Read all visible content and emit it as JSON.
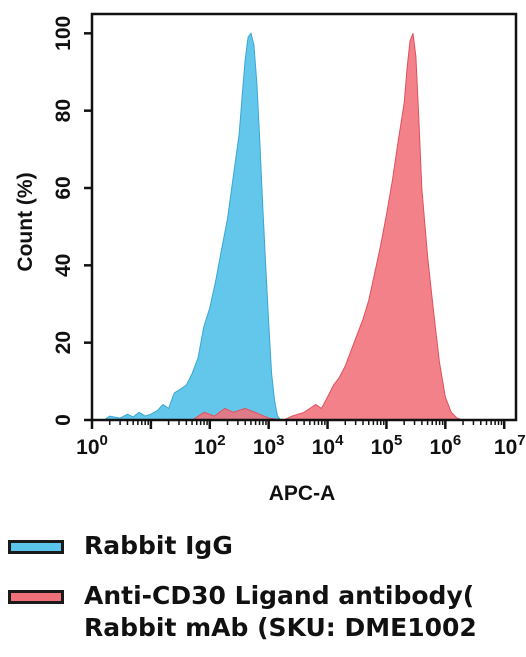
{
  "chart_data": {
    "type": "area",
    "title": "",
    "xlabel": "APC-A",
    "ylabel": "Count (%)",
    "xscale": "log",
    "xlim": [
      1,
      15848931
    ],
    "ylim": [
      0,
      105
    ],
    "x_tick_labels": [
      {
        "value": 1,
        "base": "10",
        "exp": "0"
      },
      {
        "value": 100,
        "base": "10",
        "exp": "2"
      },
      {
        "value": 1000,
        "base": "10",
        "exp": "3"
      },
      {
        "value": 10000,
        "base": "10",
        "exp": "4"
      },
      {
        "value": 100000,
        "base": "10",
        "exp": "5"
      },
      {
        "value": 1000000,
        "base": "10",
        "exp": "6"
      },
      {
        "value": 15848931,
        "base": "10",
        "exp": "7.2"
      }
    ],
    "y_ticks": [
      0,
      20,
      40,
      60,
      80,
      100
    ],
    "grid": false,
    "legend_position": "bottom",
    "series": [
      {
        "name": "Rabbit IgG",
        "color": "#5bc4ea",
        "points": [
          [
            1.6,
            0
          ],
          [
            2,
            1
          ],
          [
            3,
            0.5
          ],
          [
            4,
            1.5
          ],
          [
            5,
            0.8
          ],
          [
            6.3,
            2
          ],
          [
            8,
            1
          ],
          [
            10,
            1.5
          ],
          [
            13,
            2.5
          ],
          [
            16,
            4
          ],
          [
            20,
            3
          ],
          [
            25,
            7
          ],
          [
            32,
            8
          ],
          [
            40,
            9
          ],
          [
            50,
            12
          ],
          [
            63,
            16
          ],
          [
            79,
            24
          ],
          [
            100,
            29
          ],
          [
            126,
            36
          ],
          [
            158,
            44
          ],
          [
            200,
            52
          ],
          [
            251,
            63
          ],
          [
            316,
            74
          ],
          [
            355,
            84
          ],
          [
            398,
            93
          ],
          [
            447,
            99
          ],
          [
            501,
            100
          ],
          [
            562,
            97
          ],
          [
            631,
            87
          ],
          [
            708,
            72
          ],
          [
            794,
            55
          ],
          [
            891,
            40
          ],
          [
            1000,
            25
          ],
          [
            1122,
            12
          ],
          [
            1259,
            5
          ],
          [
            1413,
            1
          ],
          [
            1600,
            0
          ]
        ]
      },
      {
        "name": "Anti-CD30 Ligand antibody(\nRabbit mAb (SKU: DME1002",
        "color": "#f0707a",
        "points": [
          [
            50,
            0
          ],
          [
            80,
            2
          ],
          [
            120,
            1
          ],
          [
            180,
            3
          ],
          [
            250,
            2
          ],
          [
            400,
            3
          ],
          [
            700,
            1.5
          ],
          [
            1000,
            0.5
          ],
          [
            1800,
            0
          ],
          [
            2500,
            1
          ],
          [
            4000,
            2
          ],
          [
            6300,
            4
          ],
          [
            7900,
            3
          ],
          [
            10000,
            6
          ],
          [
            12600,
            9
          ],
          [
            15800,
            11
          ],
          [
            20000,
            14
          ],
          [
            25100,
            18
          ],
          [
            31600,
            22
          ],
          [
            39800,
            26
          ],
          [
            50100,
            31
          ],
          [
            63100,
            38
          ],
          [
            79400,
            45
          ],
          [
            100000,
            53
          ],
          [
            126000,
            62
          ],
          [
            158000,
            72
          ],
          [
            200000,
            82
          ],
          [
            224000,
            91
          ],
          [
            251000,
            98
          ],
          [
            282000,
            100
          ],
          [
            316000,
            94
          ],
          [
            355000,
            78
          ],
          [
            398000,
            60
          ],
          [
            501000,
            42
          ],
          [
            631000,
            28
          ],
          [
            794000,
            15
          ],
          [
            1000000,
            6
          ],
          [
            1260000,
            2
          ],
          [
            1580000,
            0.5
          ],
          [
            2000000,
            0
          ]
        ]
      }
    ]
  }
}
